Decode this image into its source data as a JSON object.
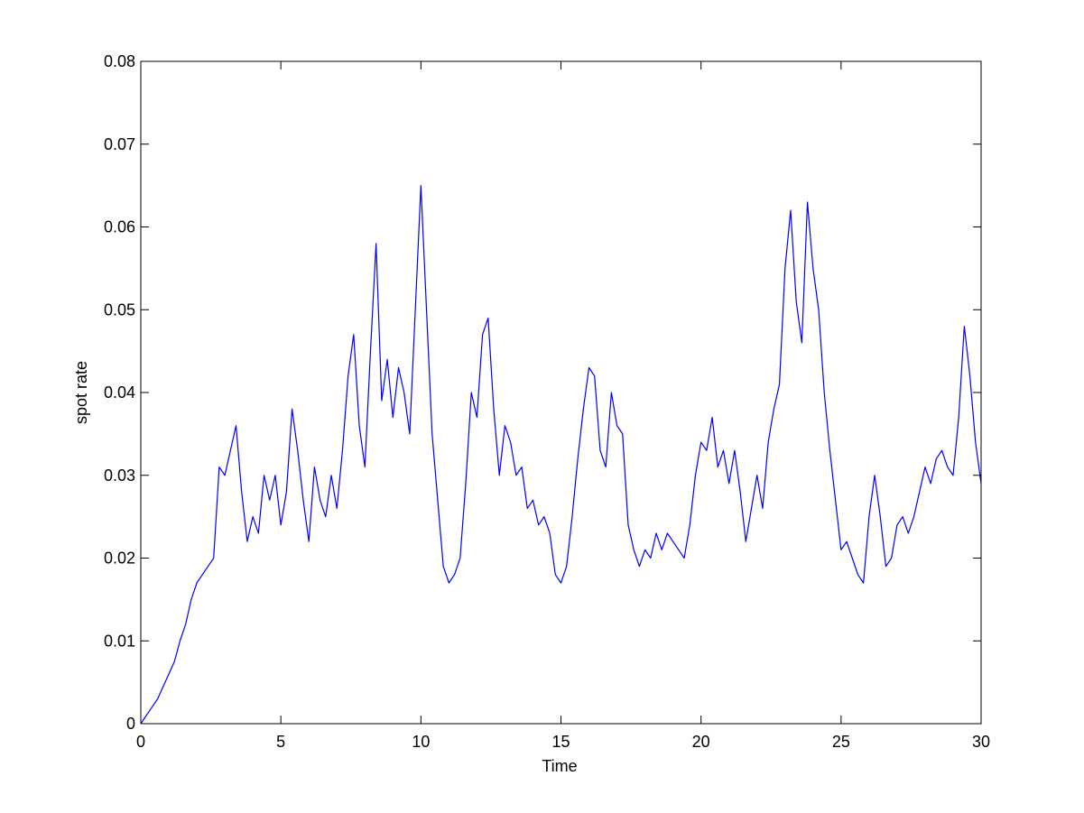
{
  "chart_data": {
    "type": "line",
    "xlabel": "Time",
    "ylabel": "spot rate",
    "color": "#0000ff",
    "xlim": [
      0,
      30
    ],
    "xticks": [
      0,
      5,
      10,
      15,
      20,
      25,
      30
    ],
    "ylim": [
      0,
      0.08
    ],
    "yticks": [
      0,
      0.01,
      0.02,
      0.03,
      0.04,
      0.05,
      0.06,
      0.07,
      0.08
    ],
    "grid": false,
    "box": true,
    "x": [
      0,
      0.2,
      0.4,
      0.6,
      0.8,
      1,
      1.2,
      1.4,
      1.6,
      1.8,
      2,
      2.2,
      2.4,
      2.6,
      2.8,
      3,
      3.2,
      3.4,
      3.6,
      3.8,
      4,
      4.2,
      4.4,
      4.6,
      4.8,
      5,
      5.2,
      5.4,
      5.6,
      5.8,
      6,
      6.2,
      6.4,
      6.6,
      6.8,
      7,
      7.2,
      7.4,
      7.6,
      7.8,
      8,
      8.2,
      8.4,
      8.6,
      8.8,
      9,
      9.2,
      9.4,
      9.6,
      9.8,
      10,
      10.2,
      10.4,
      10.6,
      10.8,
      11,
      11.2,
      11.4,
      11.6,
      11.8,
      12,
      12.2,
      12.4,
      12.6,
      12.8,
      13,
      13.2,
      13.4,
      13.6,
      13.8,
      14,
      14.2,
      14.4,
      14.6,
      14.8,
      15,
      15.2,
      15.4,
      15.6,
      15.8,
      16,
      16.2,
      16.4,
      16.6,
      16.8,
      17,
      17.2,
      17.4,
      17.6,
      17.8,
      18,
      18.2,
      18.4,
      18.6,
      18.8,
      19,
      19.2,
      19.4,
      19.6,
      19.8,
      20,
      20.2,
      20.4,
      20.6,
      20.8,
      21,
      21.2,
      21.4,
      21.6,
      21.8,
      22,
      22.2,
      22.4,
      22.6,
      22.8,
      23,
      23.2,
      23.4,
      23.6,
      23.8,
      24,
      24.2,
      24.4,
      24.6,
      24.8,
      25,
      25.2,
      25.4,
      25.6,
      25.8,
      26,
      26.2,
      26.4,
      26.6,
      26.8,
      27,
      27.2,
      27.4,
      27.6,
      27.8,
      28,
      28.2,
      28.4,
      28.6,
      28.8,
      29,
      29.2,
      29.4,
      29.6,
      29.8,
      30
    ],
    "values": [
      0,
      0.001,
      0.002,
      0.003,
      0.0045,
      0.006,
      0.0075,
      0.01,
      0.012,
      0.015,
      0.017,
      0.018,
      0.019,
      0.02,
      0.031,
      0.03,
      0.033,
      0.036,
      0.028,
      0.022,
      0.025,
      0.023,
      0.03,
      0.027,
      0.03,
      0.024,
      0.028,
      0.038,
      0.033,
      0.027,
      0.022,
      0.031,
      0.027,
      0.025,
      0.03,
      0.026,
      0.033,
      0.042,
      0.047,
      0.036,
      0.031,
      0.045,
      0.058,
      0.039,
      0.044,
      0.037,
      0.043,
      0.04,
      0.035,
      0.05,
      0.065,
      0.05,
      0.035,
      0.027,
      0.019,
      0.017,
      0.018,
      0.02,
      0.029,
      0.04,
      0.037,
      0.047,
      0.049,
      0.038,
      0.03,
      0.036,
      0.034,
      0.03,
      0.031,
      0.026,
      0.027,
      0.024,
      0.025,
      0.023,
      0.018,
      0.017,
      0.019,
      0.025,
      0.032,
      0.038,
      0.043,
      0.042,
      0.033,
      0.031,
      0.04,
      0.036,
      0.035,
      0.024,
      0.021,
      0.019,
      0.021,
      0.02,
      0.023,
      0.021,
      0.023,
      0.022,
      0.021,
      0.02,
      0.024,
      0.03,
      0.034,
      0.033,
      0.037,
      0.031,
      0.033,
      0.029,
      0.033,
      0.028,
      0.022,
      0.026,
      0.03,
      0.026,
      0.034,
      0.038,
      0.041,
      0.055,
      0.062,
      0.051,
      0.046,
      0.063,
      0.055,
      0.05,
      0.04,
      0.033,
      0.027,
      0.021,
      0.022,
      0.02,
      0.018,
      0.017,
      0.025,
      0.03,
      0.025,
      0.019,
      0.02,
      0.024,
      0.025,
      0.023,
      0.025,
      0.028,
      0.031,
      0.029,
      0.032,
      0.033,
      0.031,
      0.03,
      0.037,
      0.048,
      0.042,
      0.034,
      0.029
    ]
  }
}
